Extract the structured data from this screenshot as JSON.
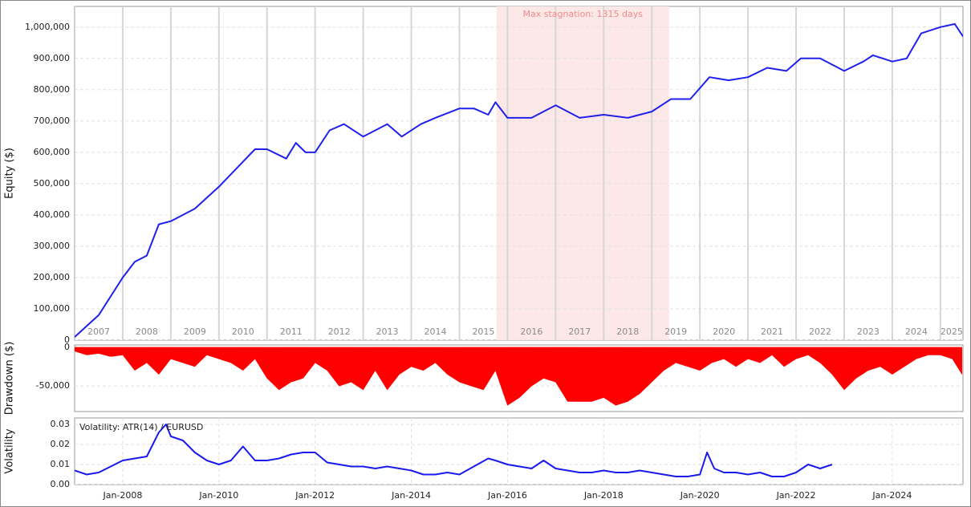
{
  "chart_data": [
    {
      "type": "line",
      "ylabel": "Equity ($)",
      "color": "#2020ee",
      "annotation": {
        "text": "Max stagnation: 1315 days",
        "x": [
          2015.77,
          2019.36
        ],
        "color": "#fde8e8"
      },
      "x": [
        2007.0,
        2007.5,
        2008.0,
        2008.25,
        2008.5,
        2008.75,
        2009.0,
        2009.5,
        2010.0,
        2010.5,
        2010.75,
        2011.0,
        2011.4,
        2011.6,
        2011.8,
        2012.0,
        2012.3,
        2012.6,
        2013.0,
        2013.5,
        2013.8,
        2014.2,
        2014.5,
        2015.0,
        2015.3,
        2015.6,
        2015.75,
        2016.0,
        2016.5,
        2017.0,
        2017.5,
        2018.0,
        2018.5,
        2019.0,
        2019.4,
        2019.8,
        2020.2,
        2020.6,
        2021.0,
        2021.4,
        2021.8,
        2022.1,
        2022.5,
        2023.0,
        2023.4,
        2023.6,
        2024.0,
        2024.3,
        2024.6,
        2025.0,
        2025.3,
        2025.47
      ],
      "values": [
        10000,
        80000,
        200000,
        250000,
        270000,
        370000,
        380000,
        420000,
        490000,
        570000,
        610000,
        610000,
        580000,
        630000,
        600000,
        600000,
        670000,
        690000,
        650000,
        690000,
        650000,
        690000,
        710000,
        740000,
        740000,
        720000,
        760000,
        710000,
        710000,
        750000,
        710000,
        720000,
        710000,
        730000,
        770000,
        770000,
        840000,
        830000,
        840000,
        870000,
        860000,
        900000,
        900000,
        860000,
        890000,
        910000,
        890000,
        900000,
        980000,
        1000000,
        1010000,
        970000
      ],
      "xlim": [
        2007.0,
        2025.47
      ],
      "xticks": [
        2007,
        2008,
        2009,
        2010,
        2011,
        2012,
        2013,
        2014,
        2015,
        2016,
        2017,
        2018,
        2019,
        2020,
        2021,
        2022,
        2023,
        2024,
        2025
      ],
      "ylim": [
        0,
        1066000
      ],
      "yticks": [
        0,
        {
          "value": 100000,
          "label": "100,000"
        },
        {
          "value": 200000,
          "label": "200,000"
        },
        {
          "value": 300000,
          "label": "300,000"
        },
        {
          "value": 400000,
          "label": "400,000"
        },
        {
          "value": 500000,
          "label": "500,000"
        },
        {
          "value": 600000,
          "label": "600,000"
        },
        {
          "value": 700000,
          "label": "700,000"
        },
        {
          "value": 800000,
          "label": "800,000"
        },
        {
          "value": 900000,
          "label": "900,000"
        },
        {
          "value": 1000000,
          "label": "1,000,000"
        }
      ],
      "grid": true
    },
    {
      "type": "area",
      "ylabel": "Drawdown ($)",
      "color": "#ff0000",
      "x": [
        2007.0,
        2007.25,
        2007.5,
        2007.75,
        2008.0,
        2008.25,
        2008.5,
        2008.75,
        2009.0,
        2009.25,
        2009.5,
        2009.75,
        2010.0,
        2010.25,
        2010.5,
        2010.75,
        2011.0,
        2011.25,
        2011.5,
        2011.75,
        2012.0,
        2012.25,
        2012.5,
        2012.75,
        2013.0,
        2013.25,
        2013.5,
        2013.75,
        2014.0,
        2014.25,
        2014.5,
        2014.75,
        2015.0,
        2015.25,
        2015.5,
        2015.75,
        2016.0,
        2016.25,
        2016.5,
        2016.75,
        2017.0,
        2017.25,
        2017.5,
        2017.75,
        2018.0,
        2018.25,
        2018.5,
        2018.75,
        2019.0,
        2019.25,
        2019.5,
        2019.75,
        2020.0,
        2020.25,
        2020.5,
        2020.75,
        2021.0,
        2021.25,
        2021.5,
        2021.75,
        2022.0,
        2022.25,
        2022.5,
        2022.75,
        2023.0,
        2023.25,
        2023.5,
        2023.75,
        2024.0,
        2024.25,
        2024.5,
        2024.75,
        2025.0,
        2025.25,
        2025.45
      ],
      "values": [
        -5000,
        -10000,
        -8000,
        -12000,
        -10000,
        -30000,
        -20000,
        -35000,
        -15000,
        -20000,
        -25000,
        -10000,
        -15000,
        -20000,
        -30000,
        -15000,
        -40000,
        -55000,
        -45000,
        -40000,
        -20000,
        -30000,
        -50000,
        -45000,
        -55000,
        -30000,
        -55000,
        -35000,
        -25000,
        -30000,
        -20000,
        -35000,
        -45000,
        -50000,
        -55000,
        -30000,
        -75000,
        -65000,
        -50000,
        -40000,
        -45000,
        -70000,
        -70000,
        -70000,
        -65000,
        -75000,
        -70000,
        -60000,
        -45000,
        -30000,
        -20000,
        -25000,
        -30000,
        -20000,
        -15000,
        -25000,
        -15000,
        -20000,
        -10000,
        -25000,
        -15000,
        -10000,
        -20000,
        -35000,
        -55000,
        -40000,
        -30000,
        -25000,
        -35000,
        -25000,
        -15000,
        -10000,
        -10000,
        -15000,
        -35000
      ],
      "xlim": [
        2007.0,
        2025.47
      ],
      "ylim": [
        -83000,
        3000
      ],
      "yticks": [
        0,
        {
          "value": -50000,
          "label": "-50,000"
        }
      ],
      "grid": true
    },
    {
      "type": "line",
      "ylabel": "Volatility",
      "x": [
        2007.0,
        2007.25,
        2007.5,
        2007.75,
        2008.0,
        2008.25,
        2008.5,
        2008.75,
        2008.9,
        2009.0,
        2009.25,
        2009.5,
        2009.75,
        2010.0,
        2010.25,
        2010.5,
        2010.75,
        2011.0,
        2011.25,
        2011.5,
        2011.75,
        2012.0,
        2012.25,
        2012.5,
        2012.75,
        2013.0,
        2013.25,
        2013.5,
        2013.75,
        2014.0,
        2014.25,
        2014.5,
        2014.75,
        2015.0,
        2015.6,
        2015.75,
        2016.0,
        2016.25,
        2016.5,
        2016.75,
        2017.0,
        2017.25,
        2017.5,
        2017.75,
        2018.0,
        2018.25,
        2018.5,
        2018.75,
        2019.0,
        2019.25,
        2019.5,
        2019.75,
        2020.0,
        2020.15,
        2020.3,
        2020.5,
        2020.75,
        2021.0,
        2021.25,
        2021.5,
        2021.75,
        2022.0,
        2022.25,
        2022.5,
        2022.75
      ],
      "series": [
        {
          "name": "Volatility: ATR(14) / EURUSD",
          "color": "#1a1aee",
          "values": [
            0.007,
            0.005,
            0.006,
            0.009,
            0.012,
            0.013,
            0.014,
            0.026,
            0.03,
            0.024,
            0.022,
            0.016,
            0.012,
            0.01,
            0.012,
            0.019,
            0.012,
            0.012,
            0.013,
            0.015,
            0.016,
            0.016,
            0.011,
            0.01,
            0.009,
            0.009,
            0.008,
            0.009,
            0.008,
            0.007,
            0.005,
            0.005,
            0.006,
            0.005,
            0.013,
            0.012,
            0.01,
            0.009,
            0.008,
            0.012,
            0.008,
            0.007,
            0.006,
            0.006,
            0.007,
            0.006,
            0.006,
            0.007,
            0.006,
            0.005,
            0.004,
            0.004,
            0.005,
            0.016,
            0.008,
            0.006,
            0.006,
            0.005,
            0.006,
            0.004,
            0.004,
            0.006,
            0.01,
            0.008,
            0.01
          ]
        }
      ],
      "xlim": [
        2007.0,
        2025.47
      ],
      "xticks": [
        {
          "value": 2008,
          "label": "Jan-2008"
        },
        {
          "value": 2010,
          "label": "Jan-2010"
        },
        {
          "value": 2012,
          "label": "Jan-2012"
        },
        {
          "value": 2014,
          "label": "Jan-2014"
        },
        {
          "value": 2016,
          "label": "Jan-2016"
        },
        {
          "value": 2018,
          "label": "Jan-2018"
        },
        {
          "value": 2020,
          "label": "Jan-2020"
        },
        {
          "value": 2022,
          "label": "Jan-2022"
        },
        {
          "value": 2024,
          "label": "Jan-2024"
        }
      ],
      "ylim": [
        0,
        0.0332
      ],
      "yticks": [
        {
          "value": 0,
          "label": "0.00"
        },
        {
          "value": 0.01,
          "label": "0.01"
        },
        {
          "value": 0.02,
          "label": "0.02"
        },
        {
          "value": 0.03,
          "label": "0.03"
        }
      ],
      "grid": true
    }
  ]
}
